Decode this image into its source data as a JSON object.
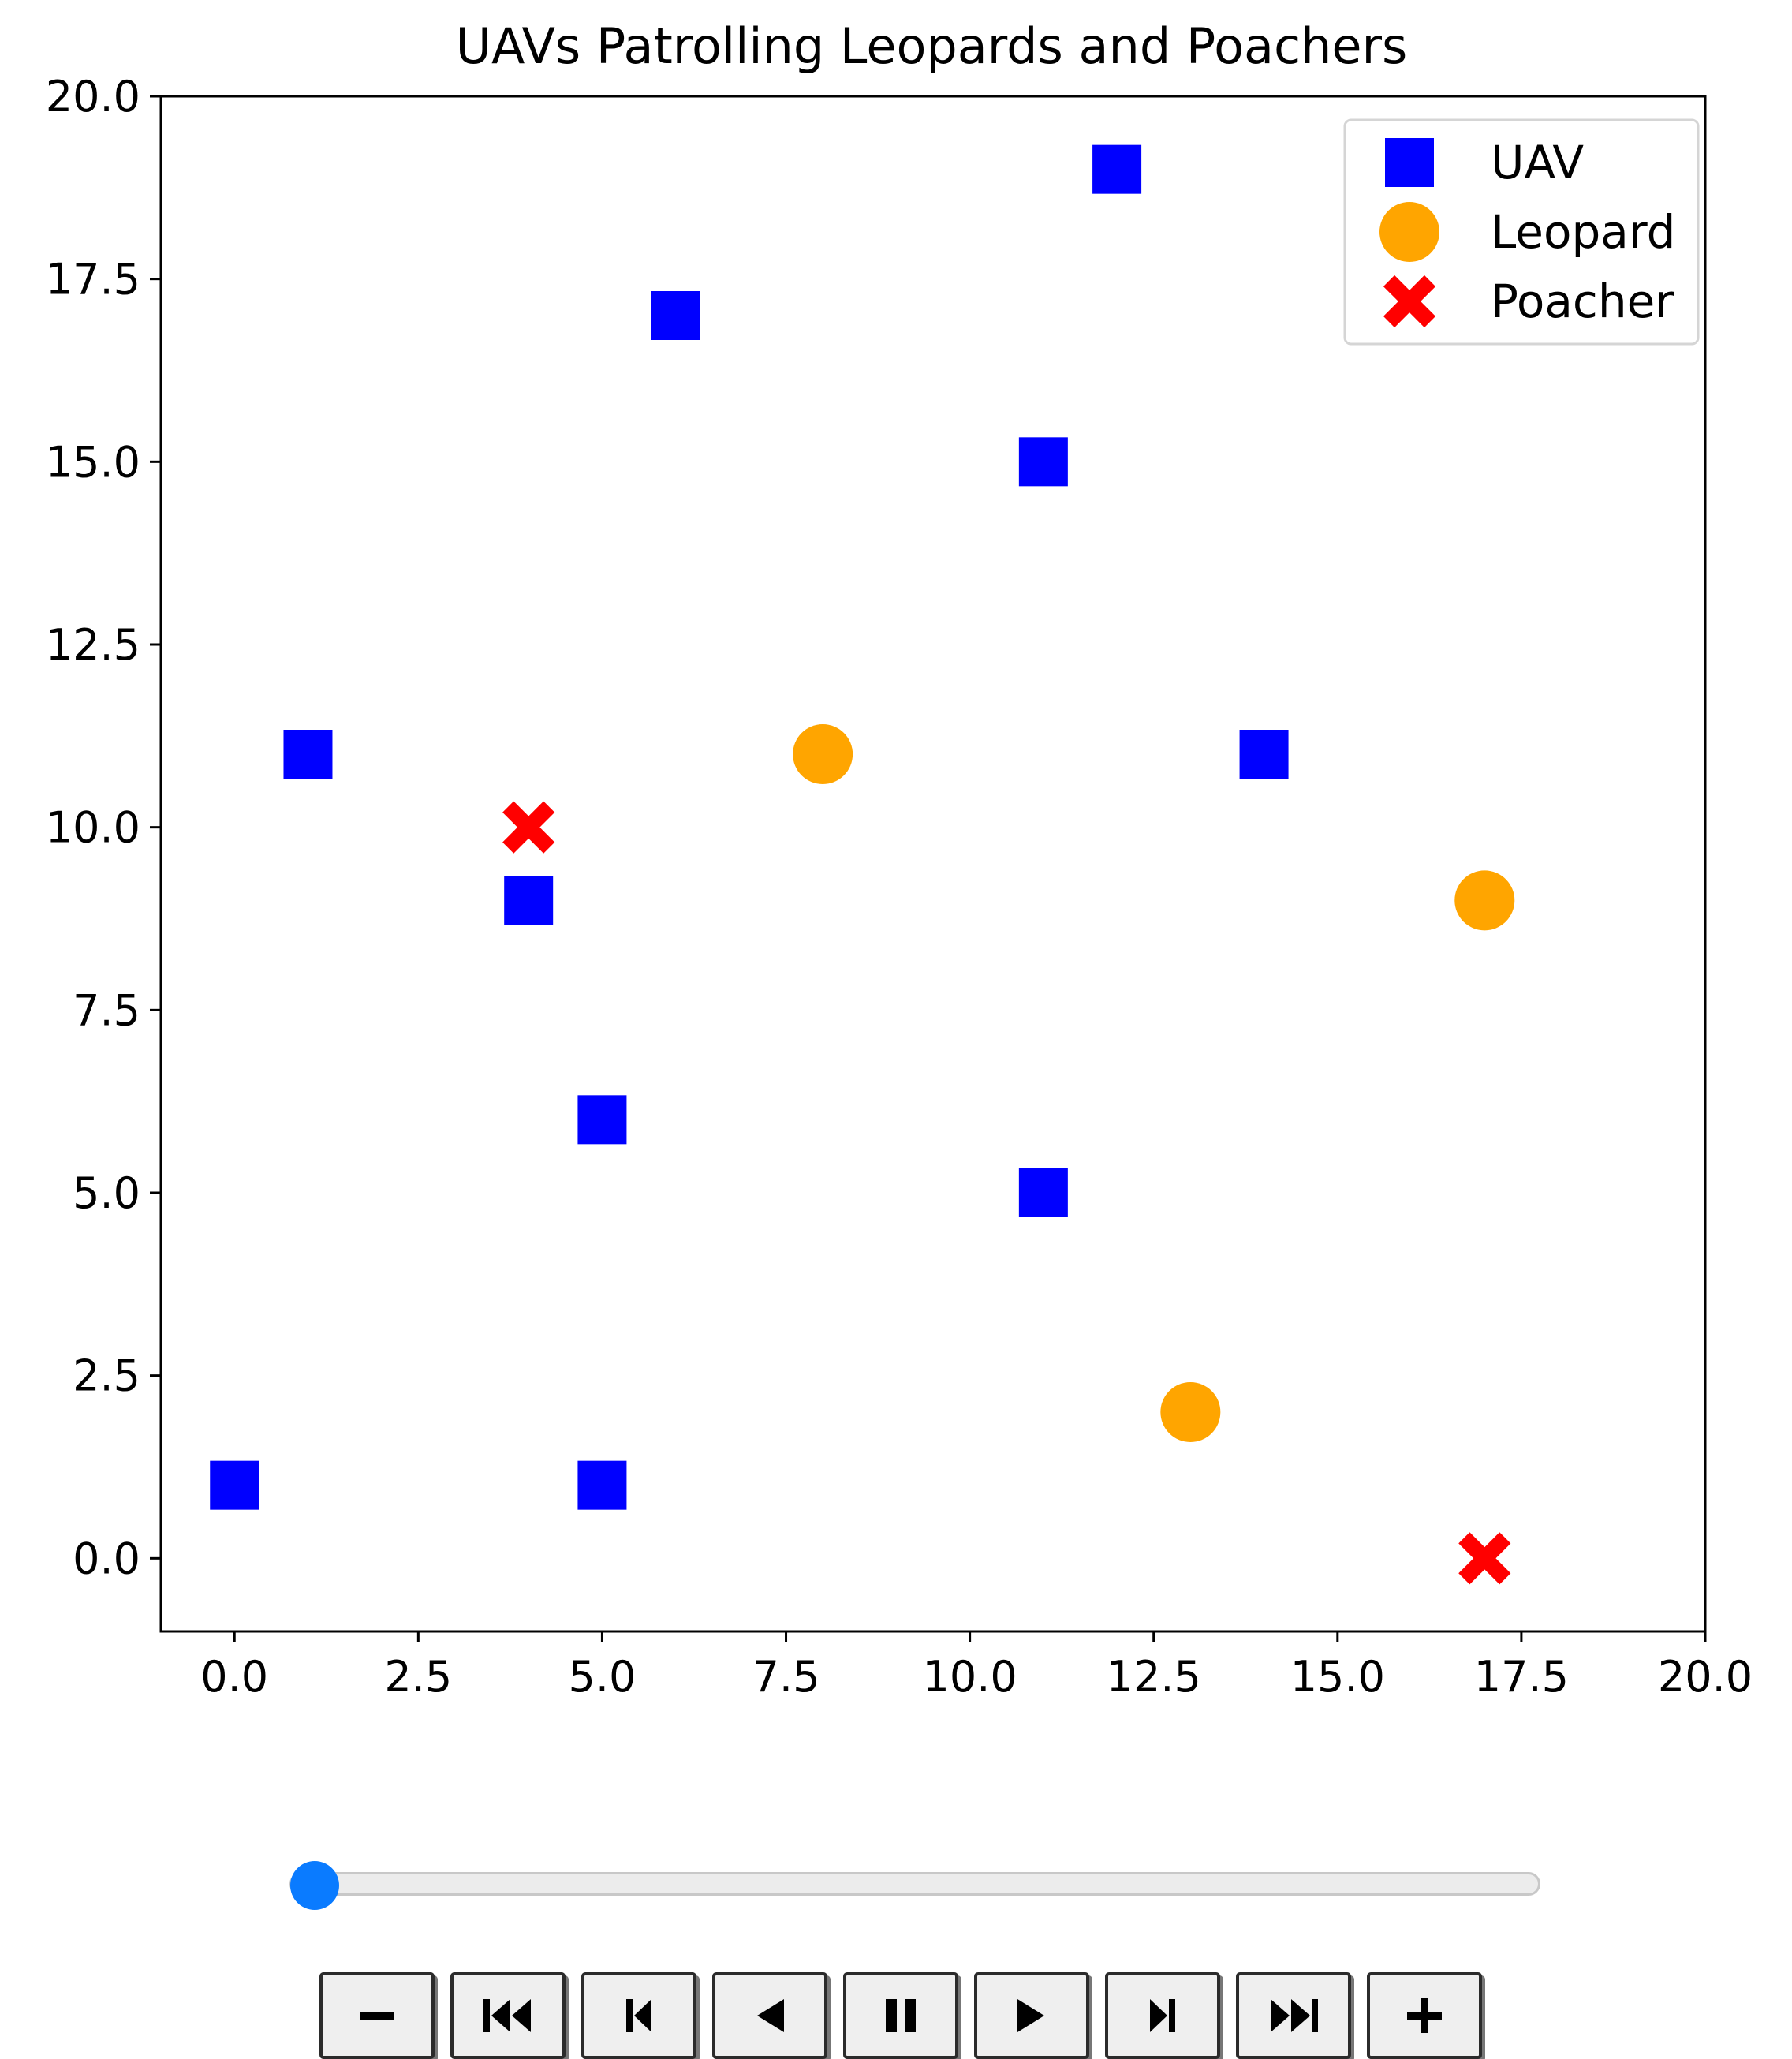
{
  "chart_data": {
    "type": "scatter",
    "title": "UAVs Patrolling Leopards and Poachers",
    "xlabel": "",
    "ylabel": "",
    "xlim": [
      -1,
      20
    ],
    "ylim": [
      -1,
      20
    ],
    "x_ticks": [
      0.0,
      2.5,
      5.0,
      7.5,
      10.0,
      12.5,
      15.0,
      17.5,
      20.0
    ],
    "y_ticks": [
      0.0,
      2.5,
      5.0,
      7.5,
      10.0,
      12.5,
      15.0,
      17.5,
      20.0
    ],
    "x_tick_labels": [
      "0.0",
      "2.5",
      "5.0",
      "7.5",
      "10.0",
      "12.5",
      "15.0",
      "17.5",
      "20.0"
    ],
    "y_tick_labels": [
      "0.0",
      "2.5",
      "5.0",
      "7.5",
      "10.0",
      "12.5",
      "15.0",
      "17.5",
      "20.0"
    ],
    "grid": false,
    "legend_position": "top-right",
    "series": [
      {
        "name": "UAV",
        "marker": "square",
        "color": "#0000ff",
        "points": [
          [
            12,
            19
          ],
          [
            6,
            17
          ],
          [
            11,
            15
          ],
          [
            1,
            11
          ],
          [
            14,
            11
          ],
          [
            4,
            9
          ],
          [
            5,
            6
          ],
          [
            11,
            5
          ],
          [
            0,
            1
          ],
          [
            5,
            1
          ]
        ]
      },
      {
        "name": "Leopard",
        "marker": "circle",
        "color": "#ffa500",
        "points": [
          [
            8,
            11
          ],
          [
            17,
            9
          ],
          [
            13,
            2
          ]
        ]
      },
      {
        "name": "Poacher",
        "marker": "x",
        "color": "#ff0000",
        "points": [
          [
            4,
            10
          ],
          [
            17,
            0
          ]
        ]
      }
    ]
  },
  "animation_controls": {
    "slider_fraction": 0.0,
    "buttons": [
      {
        "name": "decrease-speed-button",
        "icon": "minus-icon"
      },
      {
        "name": "first-frame-button",
        "icon": "skip-to-first-icon"
      },
      {
        "name": "previous-frame-button",
        "icon": "step-back-icon"
      },
      {
        "name": "play-reverse-button",
        "icon": "play-reverse-icon"
      },
      {
        "name": "pause-button",
        "icon": "pause-icon"
      },
      {
        "name": "play-button",
        "icon": "play-icon"
      },
      {
        "name": "next-frame-button",
        "icon": "step-forward-icon"
      },
      {
        "name": "last-frame-button",
        "icon": "skip-to-last-icon"
      },
      {
        "name": "increase-speed-button",
        "icon": "plus-icon"
      }
    ]
  }
}
